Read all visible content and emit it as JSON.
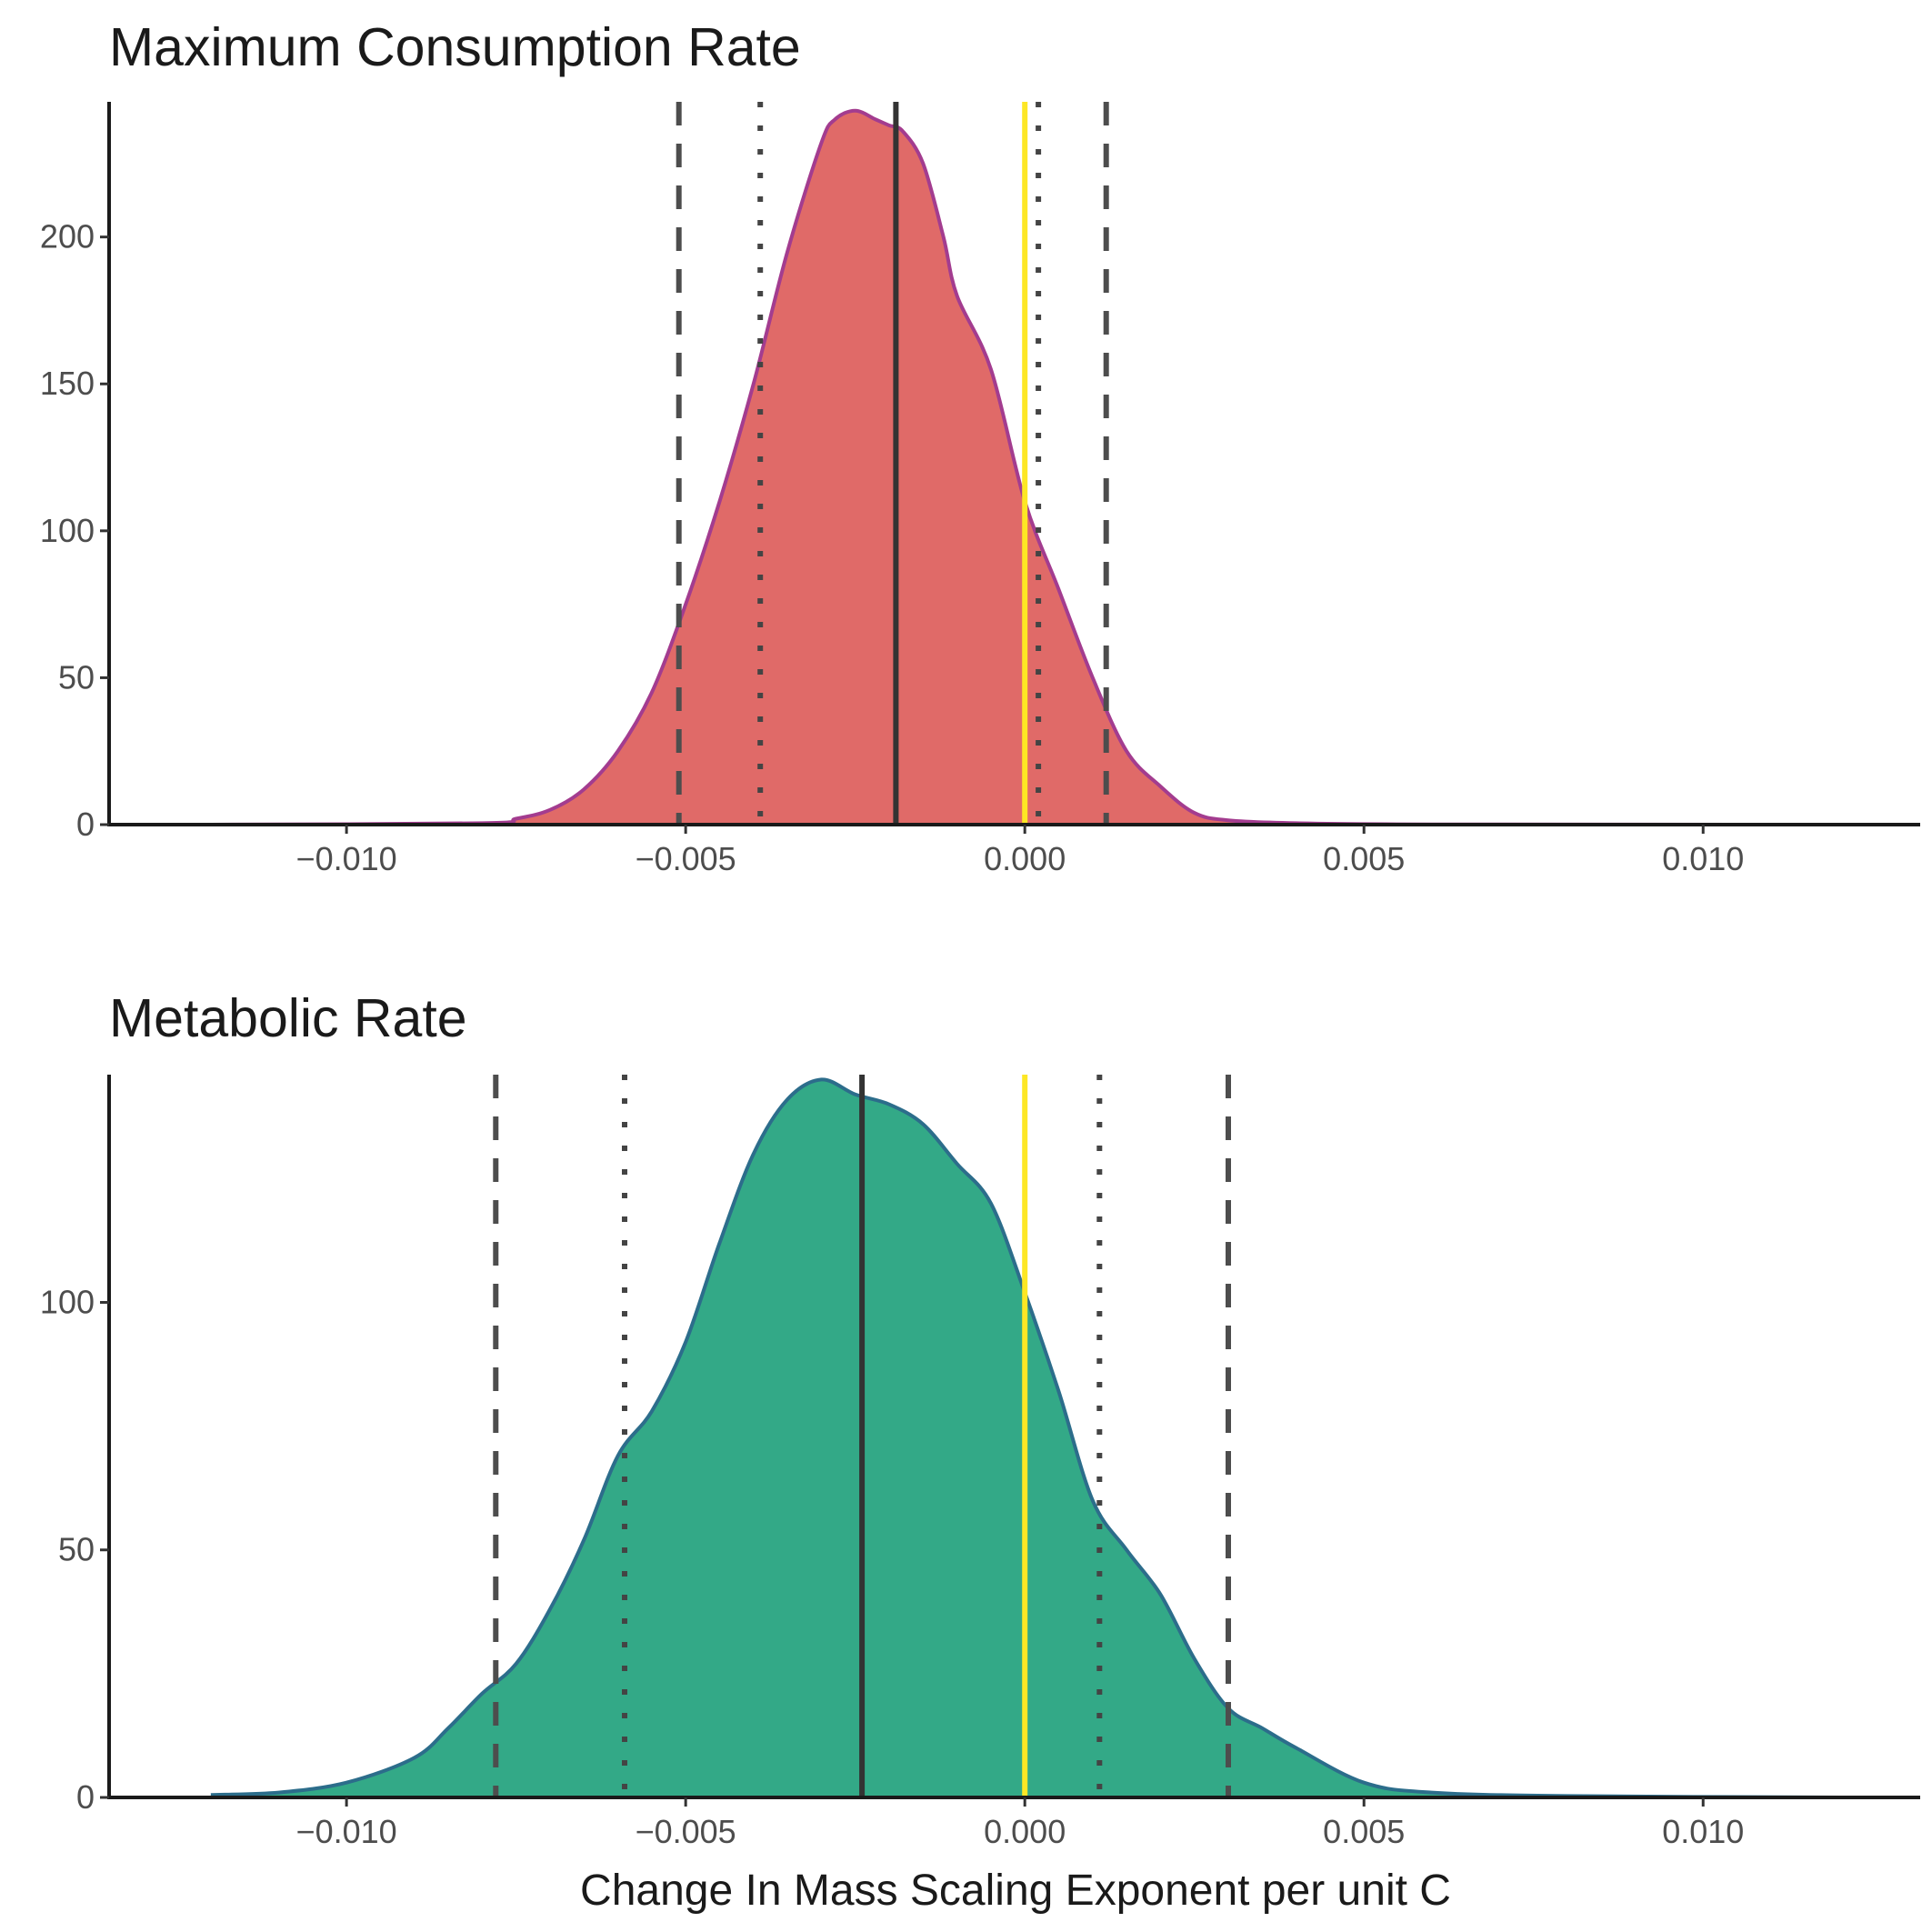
{
  "chart_data": [
    {
      "type": "area",
      "title": "Maximum Consumption Rate",
      "xlabel": "",
      "ylabel": "",
      "xlim": [
        -0.0135,
        0.0132
      ],
      "ylim": [
        0,
        246
      ],
      "x_ticks": [
        -0.01,
        -0.005,
        0.0,
        0.005,
        0.01
      ],
      "x_tick_labels": [
        "−0.010",
        "−0.005",
        "0.000",
        "0.005",
        "0.010"
      ],
      "y_ticks": [
        0,
        50,
        100,
        150,
        200
      ],
      "y_tick_labels": [
        "0",
        "50",
        "100",
        "150",
        "200"
      ],
      "grid": false,
      "colors": {
        "fill": "#E06A68",
        "outline": "#A33C8F"
      },
      "density": {
        "x": [
          -0.012,
          -0.008,
          -0.0075,
          -0.007,
          -0.0065,
          -0.006,
          -0.0055,
          -0.005,
          -0.0045,
          -0.004,
          -0.0035,
          -0.003,
          -0.0028,
          -0.0025,
          -0.0022,
          -0.002,
          -0.0018,
          -0.0015,
          -0.0012,
          -0.001,
          -0.0005,
          0.0,
          0.0005,
          0.001,
          0.0015,
          0.002,
          0.0025,
          0.003,
          0.004,
          0.006,
          0.012
        ],
        "y": [
          0,
          0.5,
          2,
          5,
          12,
          25,
          45,
          75,
          110,
          150,
          195,
          232,
          240,
          243,
          240,
          238,
          236,
          225,
          200,
          180,
          155,
          110,
          80,
          50,
          25,
          13,
          4,
          1.5,
          0.5,
          0.1,
          0
        ]
      },
      "reference_lines": [
        {
          "kind": "mean",
          "style": "solid",
          "color": "#333333",
          "x": -0.0019
        },
        {
          "kind": "inner_interval",
          "style": "dotted",
          "color": "#444444",
          "x": -0.0039
        },
        {
          "kind": "inner_interval",
          "style": "dotted",
          "color": "#444444",
          "x": 0.0002
        },
        {
          "kind": "outer_interval",
          "style": "dashed",
          "color": "#4d4d4d",
          "x": -0.0051
        },
        {
          "kind": "outer_interval",
          "style": "dashed",
          "color": "#4d4d4d",
          "x": 0.0012
        },
        {
          "kind": "zero",
          "style": "solid",
          "color": "#FDE725",
          "x": 0.0
        }
      ]
    },
    {
      "type": "area",
      "title": "Metabolic Rate",
      "xlabel": "Change In Mass Scaling Exponent per unit C",
      "ylabel": "",
      "xlim": [
        -0.0135,
        0.0132
      ],
      "ylim": [
        0,
        146
      ],
      "x_ticks": [
        -0.01,
        -0.005,
        0.0,
        0.005,
        0.01
      ],
      "x_tick_labels": [
        "−0.010",
        "−0.005",
        "0.000",
        "0.005",
        "0.010"
      ],
      "y_ticks": [
        0,
        50,
        100
      ],
      "y_tick_labels": [
        "0",
        "50",
        "100"
      ],
      "grid": false,
      "colors": {
        "fill": "#33A987",
        "outline": "#2C6D8B"
      },
      "density": {
        "x": [
          -0.012,
          -0.011,
          -0.01,
          -0.009,
          -0.0085,
          -0.008,
          -0.0075,
          -0.007,
          -0.0065,
          -0.006,
          -0.0055,
          -0.005,
          -0.0045,
          -0.004,
          -0.0035,
          -0.003,
          -0.0025,
          -0.002,
          -0.0015,
          -0.001,
          -0.0005,
          0.0,
          0.0005,
          0.001,
          0.0015,
          0.002,
          0.0025,
          0.003,
          0.0035,
          0.004,
          0.005,
          0.006,
          0.008,
          0.012
        ],
        "y": [
          0.5,
          1,
          3,
          8,
          14,
          21,
          27,
          38,
          52,
          69,
          78,
          92,
          112,
          130,
          141,
          145,
          142,
          140,
          136,
          128,
          120,
          102,
          82,
          60,
          50,
          41,
          28,
          18,
          14,
          10,
          3,
          1,
          0.3,
          0
        ]
      },
      "reference_lines": [
        {
          "kind": "mean",
          "style": "solid",
          "color": "#333333",
          "x": -0.0024
        },
        {
          "kind": "inner_interval",
          "style": "dotted",
          "color": "#444444",
          "x": -0.0059
        },
        {
          "kind": "inner_interval",
          "style": "dotted",
          "color": "#444444",
          "x": 0.0011
        },
        {
          "kind": "outer_interval",
          "style": "dashed",
          "color": "#4d4d4d",
          "x": -0.0078
        },
        {
          "kind": "outer_interval",
          "style": "dashed",
          "color": "#4d4d4d",
          "x": 0.003
        },
        {
          "kind": "zero",
          "style": "solid",
          "color": "#FDE725",
          "x": 0.0
        }
      ]
    }
  ]
}
